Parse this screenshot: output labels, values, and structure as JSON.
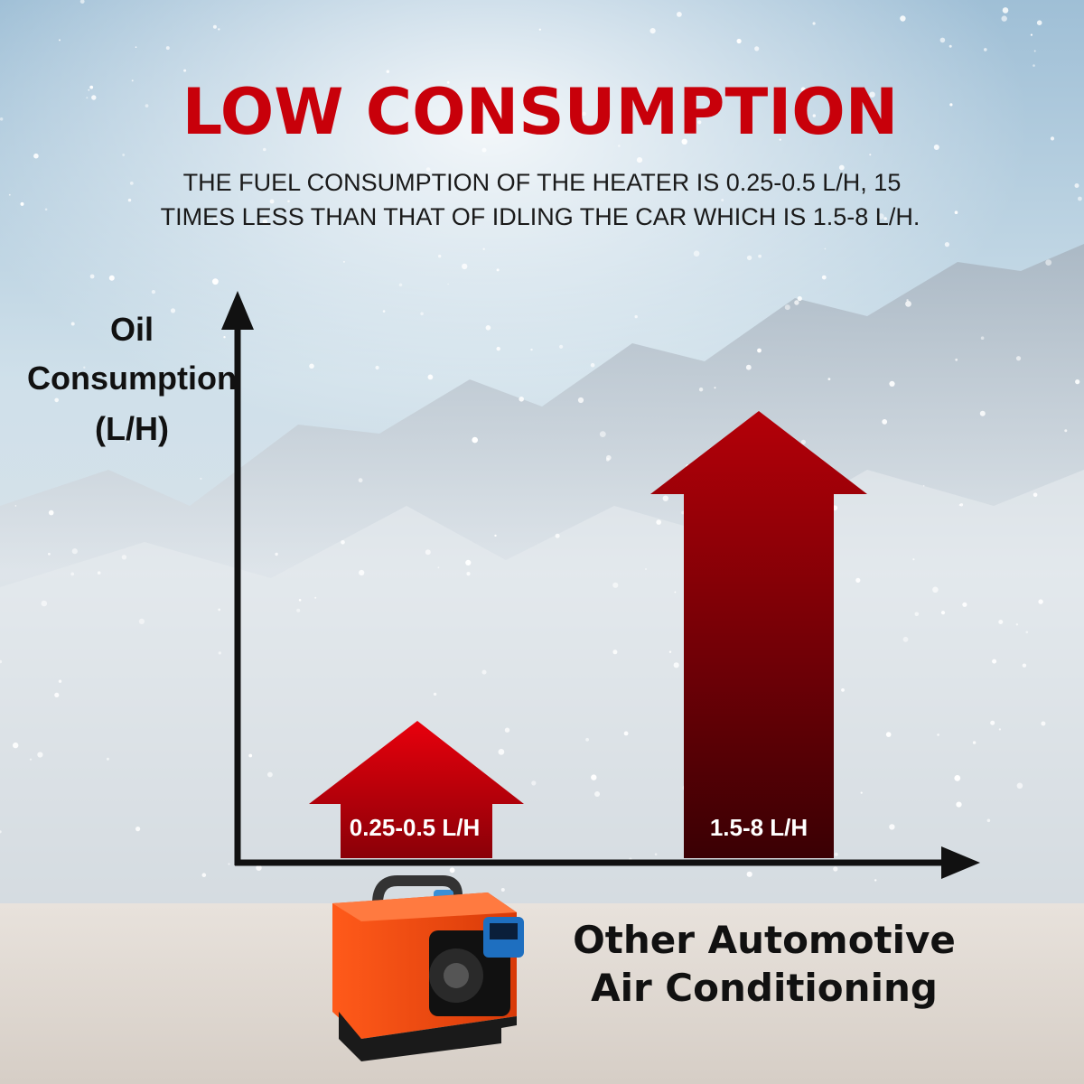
{
  "header": {
    "title": "LOW CONSUMPTION",
    "subtitle_lines": [
      "THE FUEL CONSUMPTION OF THE HEATER IS 0.25-0.5 L/H, 15",
      "TIMES LESS THAN THAT OF IDLING THE CAR WHICH IS 1.5-8 L/H."
    ]
  },
  "axis": {
    "label_lines": [
      "Oil",
      "Consumption",
      "(L/H)"
    ]
  },
  "arrows": [
    {
      "label": "0.25-0.5 L/H"
    },
    {
      "label": "1.5-8 L/H"
    }
  ],
  "caption": {
    "lines": [
      "Other Automotive",
      "Air Conditioning"
    ]
  }
}
